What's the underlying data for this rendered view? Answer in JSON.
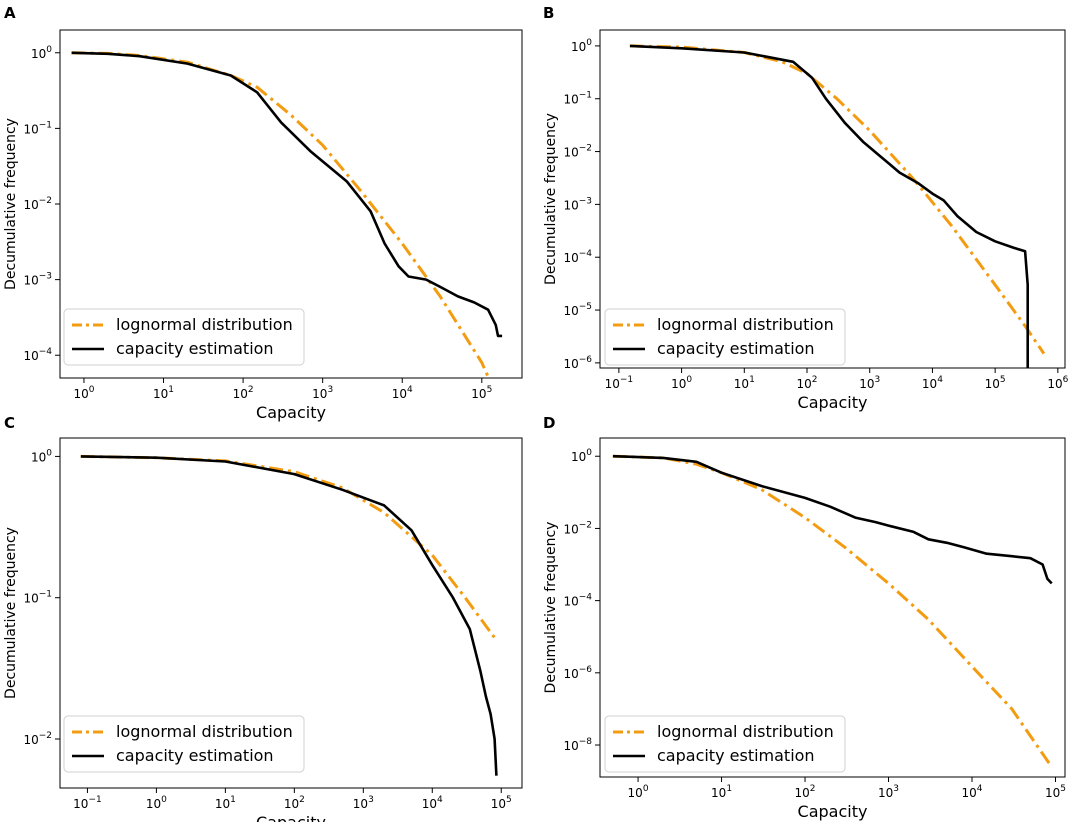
{
  "figure": {
    "panel_letters": [
      "A",
      "B",
      "C",
      "D"
    ]
  },
  "colors": {
    "lognormal": "#f39c12",
    "capacity": "#000000"
  },
  "chart_data": [
    {
      "panel": "A",
      "type": "line",
      "xlabel": "Capacity",
      "ylabel": "Decumulative frequency",
      "xscale": "log",
      "yscale": "log",
      "xlim": [
        0.5,
        320000
      ],
      "ylim": [
        5e-05,
        2.0
      ],
      "xticks": [
        {
          "v": 1,
          "base": "10",
          "exp": "0"
        },
        {
          "v": 10,
          "base": "10",
          "exp": "1"
        },
        {
          "v": 100,
          "base": "10",
          "exp": "2"
        },
        {
          "v": 1000,
          "base": "10",
          "exp": "3"
        },
        {
          "v": 10000,
          "base": "10",
          "exp": "4"
        },
        {
          "v": 100000,
          "base": "10",
          "exp": "5"
        }
      ],
      "yticks": [
        {
          "v": 1,
          "base": "10",
          "exp": "0"
        },
        {
          "v": 0.1,
          "base": "10",
          "exp": "−1"
        },
        {
          "v": 0.01,
          "base": "10",
          "exp": "−2"
        },
        {
          "v": 0.001,
          "base": "10",
          "exp": "−3"
        },
        {
          "v": 0.0001,
          "base": "10",
          "exp": "−4"
        }
      ],
      "legend": {
        "loc": "lower-left",
        "entries": [
          "lognormal distribution",
          "capacity estimation"
        ]
      },
      "series": [
        {
          "name": "lognormal distribution",
          "style": "dashdot",
          "x": [
            0.7,
            2,
            5,
            20,
            70,
            150,
            400,
            1000,
            3000,
            10000,
            30000,
            100000,
            180000
          ],
          "y": [
            1.0,
            0.98,
            0.92,
            0.75,
            0.5,
            0.35,
            0.15,
            0.06,
            0.015,
            0.003,
            0.0006,
            8e-05,
            2e-05
          ]
        },
        {
          "name": "capacity estimation",
          "style": "solid",
          "x": [
            0.7,
            2,
            5,
            20,
            70,
            150,
            300,
            700,
            2000,
            4000,
            6000,
            9000,
            12000,
            20000,
            30000,
            50000,
            80000,
            120000,
            150000,
            160000,
            180000
          ],
          "y": [
            1.0,
            0.97,
            0.9,
            0.72,
            0.5,
            0.3,
            0.12,
            0.05,
            0.02,
            0.008,
            0.003,
            0.0015,
            0.0011,
            0.001,
            0.0008,
            0.0006,
            0.0005,
            0.0004,
            0.00025,
            0.00018,
            0.00018
          ]
        }
      ]
    },
    {
      "panel": "B",
      "type": "line",
      "xlabel": "Capacity",
      "ylabel": "Decumulative frequency",
      "xscale": "log",
      "yscale": "log",
      "xlim": [
        0.05,
        1300000
      ],
      "ylim": [
        8e-07,
        2.0
      ],
      "xticks": [
        {
          "v": 0.1,
          "base": "10",
          "exp": "−1"
        },
        {
          "v": 1,
          "base": "10",
          "exp": "0"
        },
        {
          "v": 10,
          "base": "10",
          "exp": "1"
        },
        {
          "v": 100,
          "base": "10",
          "exp": "2"
        },
        {
          "v": 1000,
          "base": "10",
          "exp": "3"
        },
        {
          "v": 10000,
          "base": "10",
          "exp": "4"
        },
        {
          "v": 100000,
          "base": "10",
          "exp": "5"
        },
        {
          "v": 1000000,
          "base": "10",
          "exp": "6"
        }
      ],
      "yticks": [
        {
          "v": 1,
          "base": "10",
          "exp": "0"
        },
        {
          "v": 0.1,
          "base": "10",
          "exp": "−1"
        },
        {
          "v": 0.01,
          "base": "10",
          "exp": "−2"
        },
        {
          "v": 0.001,
          "base": "10",
          "exp": "−3"
        },
        {
          "v": 0.0001,
          "base": "10",
          "exp": "−4"
        },
        {
          "v": 1e-05,
          "base": "10",
          "exp": "−5"
        },
        {
          "v": 1e-06,
          "base": "10",
          "exp": "−6"
        }
      ],
      "legend": {
        "loc": "lower-left",
        "entries": [
          "lognormal distribution",
          "capacity estimation"
        ]
      },
      "series": [
        {
          "name": "lognormal distribution",
          "style": "dashdot",
          "x": [
            0.15,
            1,
            10,
            40,
            100,
            300,
            1000,
            5000,
            20000,
            100000,
            300000,
            600000
          ],
          "y": [
            1.0,
            0.95,
            0.75,
            0.5,
            0.3,
            0.1,
            0.025,
            0.003,
            0.0004,
            3e-05,
            5e-06,
            1.5e-06
          ]
        },
        {
          "name": "capacity estimation",
          "style": "solid",
          "x": [
            0.15,
            1,
            10,
            60,
            120,
            200,
            400,
            800,
            1500,
            3000,
            6000,
            10000,
            15000,
            25000,
            50000,
            100000,
            200000,
            300000,
            330000,
            330001
          ],
          "y": [
            1.0,
            0.9,
            0.75,
            0.5,
            0.25,
            0.1,
            0.035,
            0.015,
            0.008,
            0.004,
            0.0025,
            0.0016,
            0.0012,
            0.0006,
            0.0003,
            0.0002,
            0.00015,
            0.00013,
            3e-05,
            8e-07
          ]
        }
      ]
    },
    {
      "panel": "C",
      "type": "line",
      "xlabel": "Capacity",
      "ylabel": "Decumulative frequency",
      "xscale": "log",
      "yscale": "log",
      "xlim": [
        0.04,
        200000
      ],
      "ylim": [
        0.0045,
        1.35
      ],
      "xticks": [
        {
          "v": 0.1,
          "base": "10",
          "exp": "−1"
        },
        {
          "v": 1,
          "base": "10",
          "exp": "0"
        },
        {
          "v": 10,
          "base": "10",
          "exp": "1"
        },
        {
          "v": 100,
          "base": "10",
          "exp": "2"
        },
        {
          "v": 1000,
          "base": "10",
          "exp": "3"
        },
        {
          "v": 10000,
          "base": "10",
          "exp": "4"
        },
        {
          "v": 100000,
          "base": "10",
          "exp": "5"
        }
      ],
      "yticks": [
        {
          "v": 1,
          "base": "10",
          "exp": "0"
        },
        {
          "v": 0.1,
          "base": "10",
          "exp": "−1"
        },
        {
          "v": 0.01,
          "base": "10",
          "exp": "−2"
        }
      ],
      "legend": {
        "loc": "lower-left",
        "entries": [
          "lognormal distribution",
          "capacity estimation"
        ]
      },
      "series": [
        {
          "name": "lognormal distribution",
          "style": "dashdot",
          "x": [
            0.08,
            1,
            10,
            100,
            500,
            2000,
            5000,
            10000,
            30000,
            85000
          ],
          "y": [
            1.0,
            0.98,
            0.93,
            0.78,
            0.6,
            0.4,
            0.27,
            0.2,
            0.1,
            0.05
          ]
        },
        {
          "name": "capacity estimation",
          "style": "solid",
          "x": [
            0.08,
            1,
            10,
            100,
            500,
            2000,
            5000,
            10000,
            20000,
            35000,
            50000,
            60000,
            70000,
            80000,
            85000
          ],
          "y": [
            1.0,
            0.98,
            0.92,
            0.75,
            0.58,
            0.45,
            0.3,
            0.17,
            0.1,
            0.06,
            0.03,
            0.02,
            0.015,
            0.01,
            0.0055
          ]
        }
      ]
    },
    {
      "panel": "D",
      "type": "line",
      "xlabel": "Capacity",
      "ylabel": "Decumulative frequency",
      "xscale": "log",
      "yscale": "log",
      "xlim": [
        0.35,
        130000
      ],
      "ylim": [
        1.3e-09,
        3.2
      ],
      "xticks": [
        {
          "v": 1,
          "base": "10",
          "exp": "0"
        },
        {
          "v": 10,
          "base": "10",
          "exp": "1"
        },
        {
          "v": 100,
          "base": "10",
          "exp": "2"
        },
        {
          "v": 1000,
          "base": "10",
          "exp": "3"
        },
        {
          "v": 10000,
          "base": "10",
          "exp": "4"
        },
        {
          "v": 100000,
          "base": "10",
          "exp": "5"
        }
      ],
      "yticks": [
        {
          "v": 1,
          "base": "10",
          "exp": "0"
        },
        {
          "v": 0.01,
          "base": "10",
          "exp": "−2"
        },
        {
          "v": 0.0001,
          "base": "10",
          "exp": "−4"
        },
        {
          "v": 1e-06,
          "base": "10",
          "exp": "−6"
        },
        {
          "v": 1e-08,
          "base": "10",
          "exp": "−8"
        }
      ],
      "legend": {
        "loc": "lower-left",
        "entries": [
          "lognormal distribution",
          "capacity estimation"
        ]
      },
      "series": [
        {
          "name": "lognormal distribution",
          "style": "dashdot",
          "x": [
            0.5,
            2,
            5,
            10,
            30,
            100,
            300,
            1000,
            3000,
            10000,
            30000,
            85000
          ],
          "y": [
            1.0,
            0.9,
            0.6,
            0.35,
            0.12,
            0.02,
            0.003,
            0.0003,
            3e-05,
            1.5e-06,
            1e-07,
            3e-09
          ]
        },
        {
          "name": "capacity estimation",
          "style": "solid",
          "x": [
            0.5,
            2,
            5,
            10,
            30,
            100,
            200,
            400,
            700,
            1000,
            2000,
            3000,
            5000,
            8000,
            15000,
            30000,
            50000,
            70000,
            80000,
            90000
          ],
          "y": [
            1.0,
            0.9,
            0.7,
            0.35,
            0.15,
            0.07,
            0.04,
            0.02,
            0.015,
            0.012,
            0.008,
            0.005,
            0.004,
            0.003,
            0.002,
            0.0017,
            0.0015,
            0.001,
            0.0004,
            0.0003
          ]
        }
      ]
    }
  ]
}
